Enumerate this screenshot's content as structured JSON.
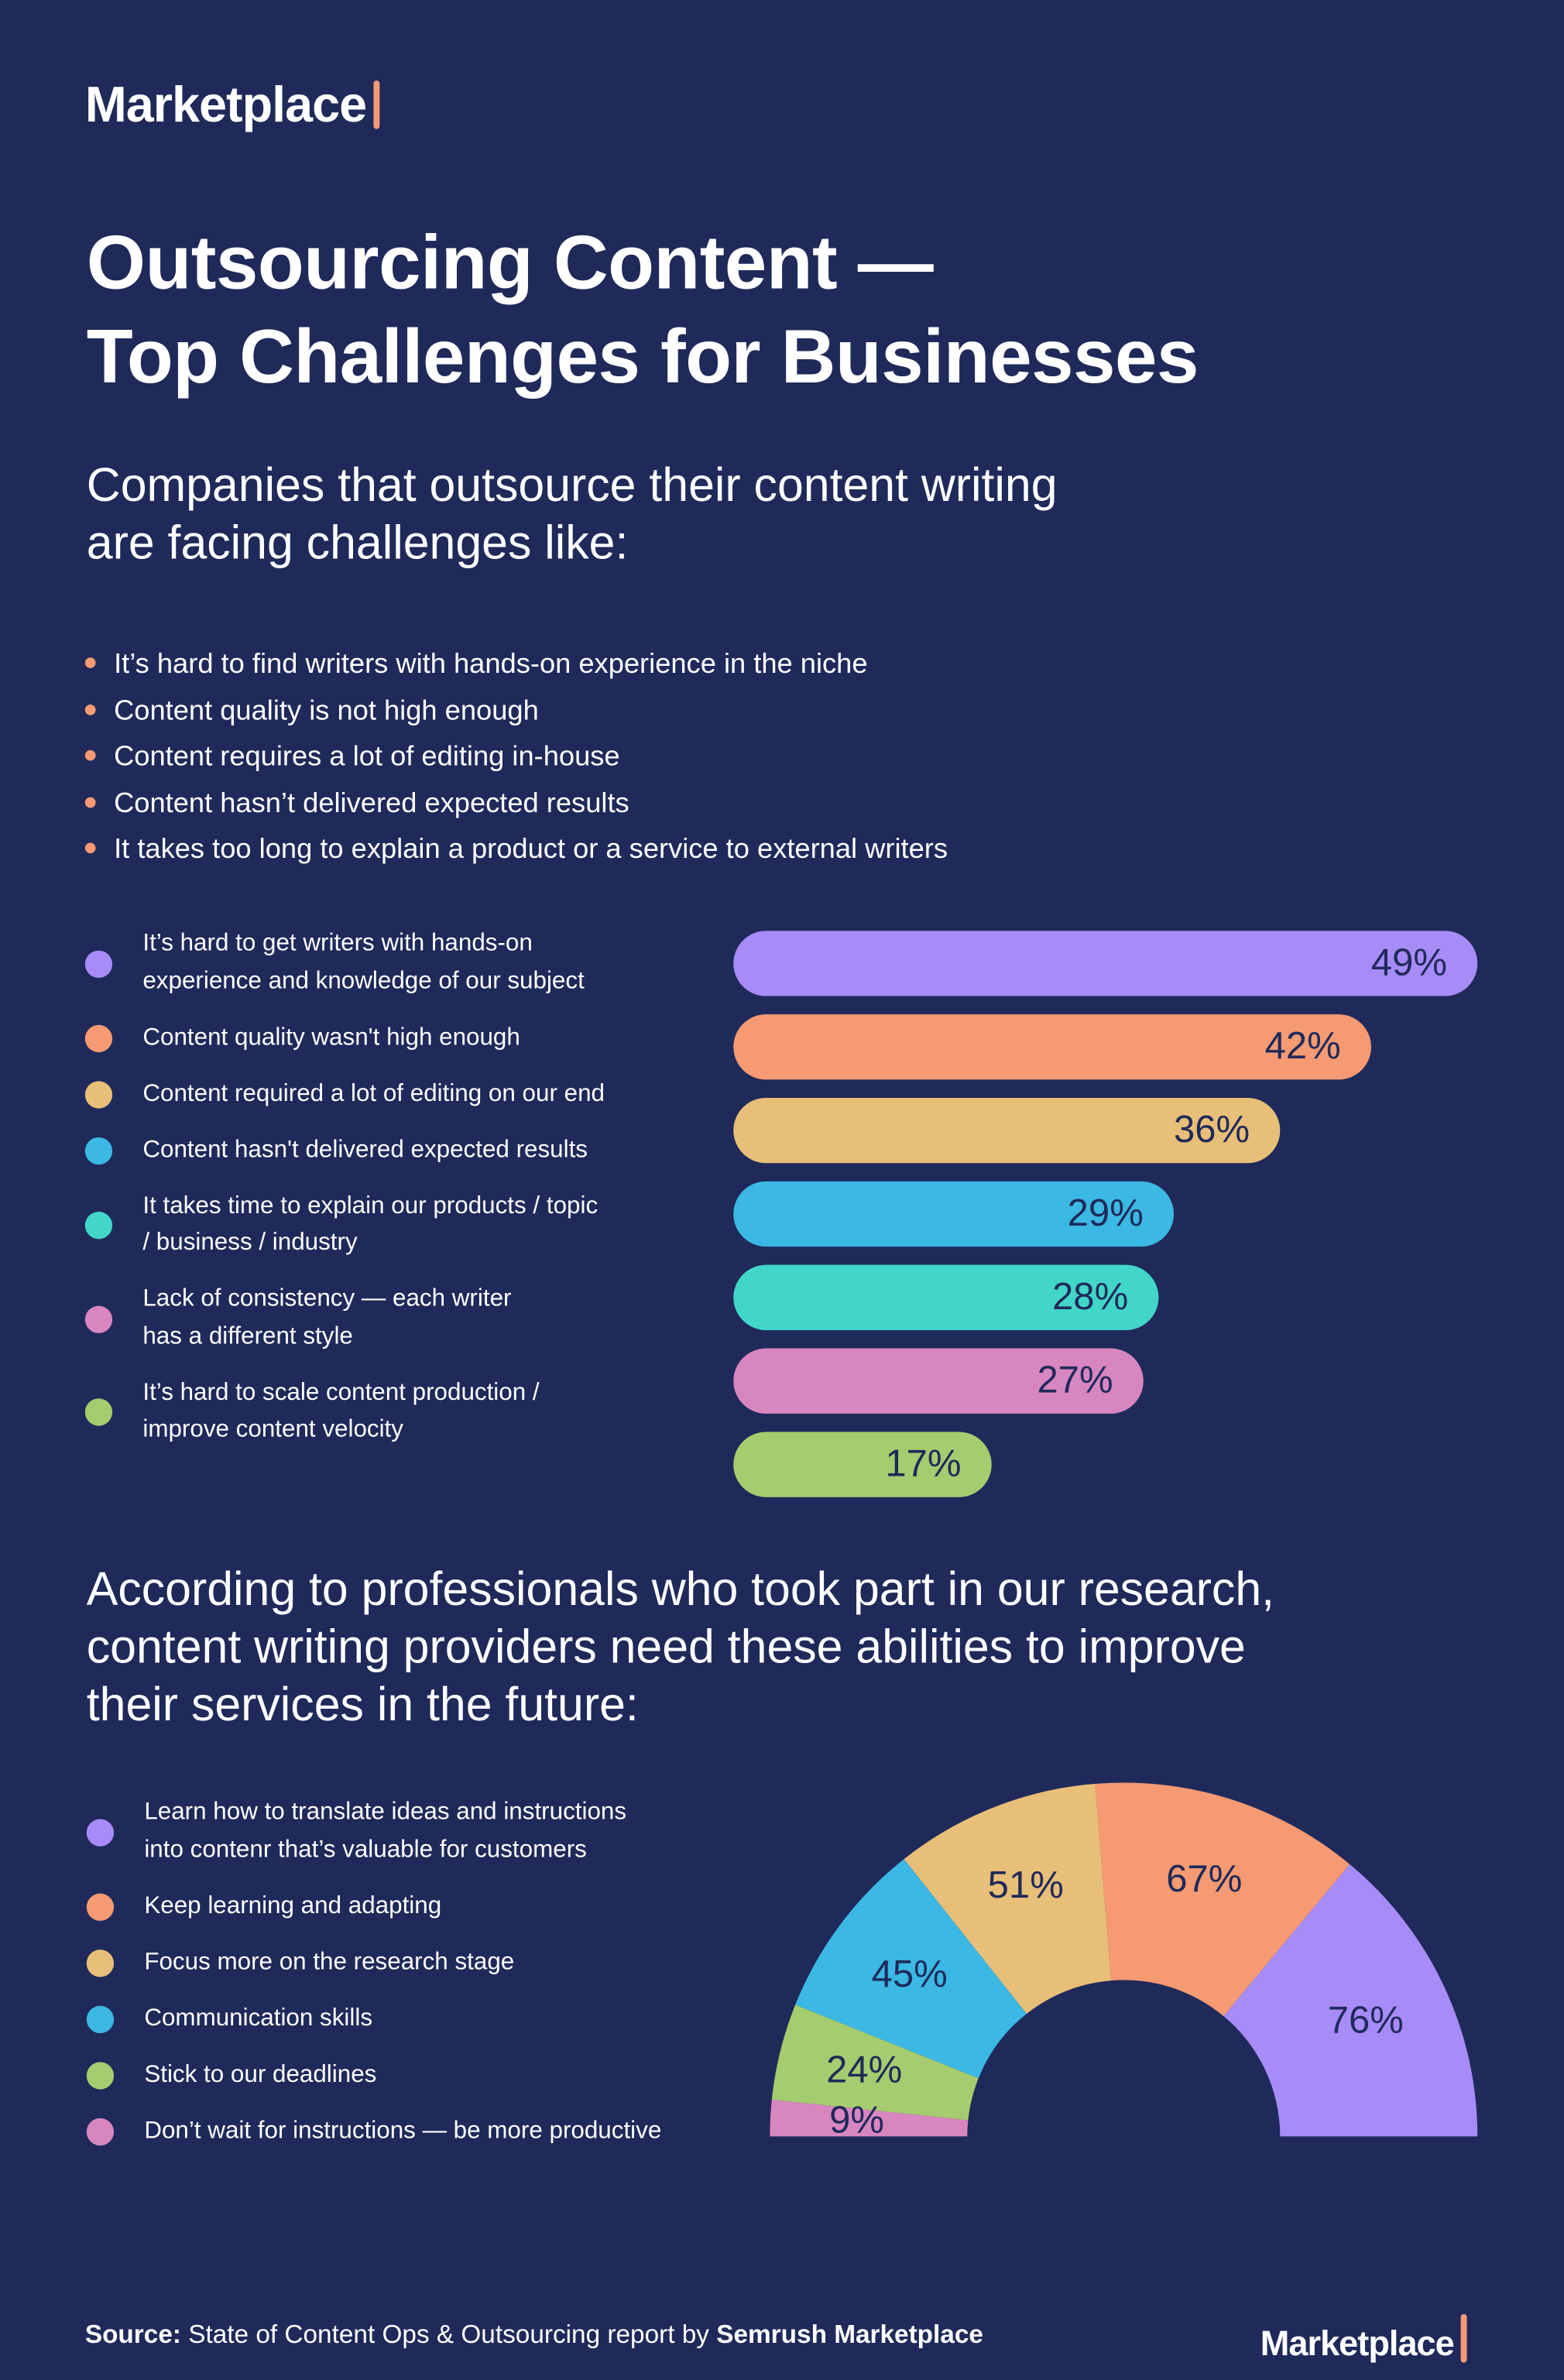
{
  "header": {
    "logo": "Marketplace",
    "title": "Outsourcing Content —\nTop Challenges for Businesses",
    "subtitle": "Companies that outsource their content writing\nare facing challenges like:"
  },
  "bullets": [
    "It’s hard to find writers with hands-on experience in the niche",
    "Content quality is not high enough",
    "Content requires a lot of editing in-house",
    "Content hasn’t delivered expected results",
    "It takes too long to explain a product or a service to external writers"
  ],
  "chart_data": [
    {
      "type": "bar",
      "orientation": "horizontal",
      "categories": [
        "It’s hard to get writers with hands-on\nexperience and knowledge of our subject",
        "Content quality wasn't high enough",
        "Content required a lot of editing on our end",
        "Content hasn't delivered expected results",
        "It takes time to explain our products / topic\n/ business / industry",
        "Lack of consistency — each writer\nhas a different style",
        "It’s hard to scale content production /\nimprove content velocity"
      ],
      "values": [
        49,
        42,
        36,
        29,
        28,
        27,
        17
      ],
      "value_labels": [
        "49%",
        "42%",
        "36%",
        "29%",
        "28%",
        "27%",
        "17%"
      ],
      "colors": [
        "#a78bf7",
        "#f59a73",
        "#e8bf78",
        "#3bb8e3",
        "#41d6c8",
        "#d886c0",
        "#a5cc6e"
      ]
    },
    {
      "type": "semi-donut",
      "title": "According to professionals who took part in our research,\ncontent writing providers need these abilities to improve\ntheir services in the future:",
      "categories": [
        "Learn how to translate ideas and instructions\ninto contenr that’s valuable for customers",
        "Keep learning and adapting",
        "Focus more on the research stage",
        "Communication skills",
        "Stick to our deadlines",
        "Don’t wait for instructions — be more productive"
      ],
      "values": [
        76,
        67,
        51,
        45,
        24,
        9
      ],
      "value_labels": [
        "76%",
        "67%",
        "51%",
        "45%",
        "24%",
        "9%"
      ],
      "colors": [
        "#a78bf7",
        "#f59a73",
        "#e8bf78",
        "#3bb8e3",
        "#a5cc6e",
        "#d886c0"
      ]
    }
  ],
  "footer": {
    "source_label": "Source:",
    "source_text": "State of Content Ops & Outsourcing report by",
    "source_brand": "Semrush Marketplace",
    "logo": "Marketplace"
  }
}
